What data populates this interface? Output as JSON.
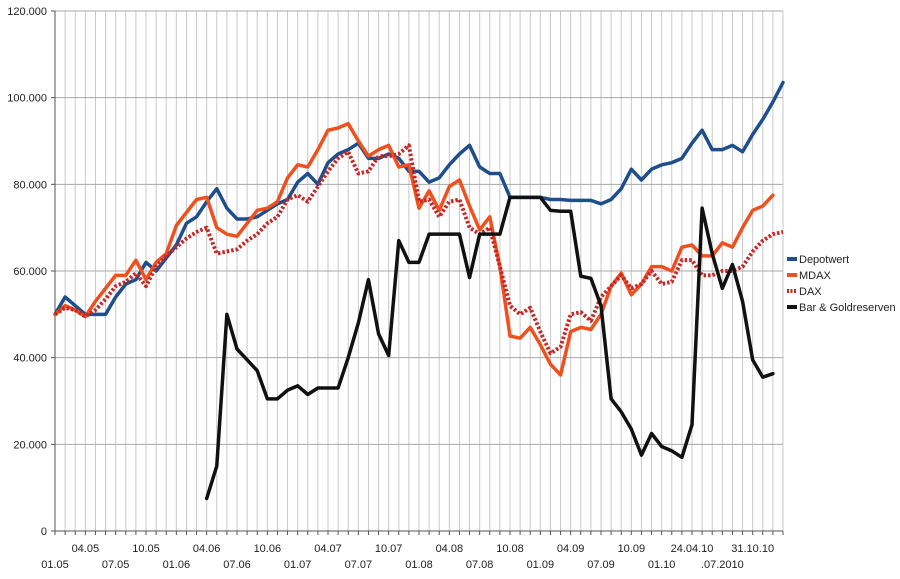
{
  "chart_data": {
    "type": "line",
    "title": "",
    "xlabel": "",
    "ylabel": "",
    "ylim": [
      0,
      120000
    ],
    "y_ticks": [
      {
        "value": 0,
        "label": "0"
      },
      {
        "value": 20000,
        "label": "20.000"
      },
      {
        "value": 40000,
        "label": "40.000"
      },
      {
        "value": 60000,
        "label": "60.000"
      },
      {
        "value": 80000,
        "label": "80.000"
      },
      {
        "value": 100000,
        "label": "100.000"
      },
      {
        "value": 120000,
        "label": "120.000"
      }
    ],
    "grid": true,
    "legend_position": "right",
    "x_tick_labels_upper": [
      {
        "index": 3,
        "label": "04.05"
      },
      {
        "index": 9,
        "label": "10.05"
      },
      {
        "index": 15,
        "label": "04.06"
      },
      {
        "index": 21,
        "label": "10.06"
      },
      {
        "index": 27,
        "label": "04.07"
      },
      {
        "index": 33,
        "label": "10.07"
      },
      {
        "index": 39,
        "label": "04.08"
      },
      {
        "index": 45,
        "label": "10.08"
      },
      {
        "index": 51,
        "label": "04.09"
      },
      {
        "index": 57,
        "label": "10.09"
      },
      {
        "index": 63,
        "label": "24.04.10"
      },
      {
        "index": 69,
        "label": "31.10.10"
      }
    ],
    "x_tick_labels_lower": [
      {
        "index": 0,
        "label": "01.05"
      },
      {
        "index": 6,
        "label": "07.05"
      },
      {
        "index": 12,
        "label": "01.06"
      },
      {
        "index": 18,
        "label": "07.06"
      },
      {
        "index": 24,
        "label": "01.07"
      },
      {
        "index": 30,
        "label": "07.07"
      },
      {
        "index": 36,
        "label": "01.08"
      },
      {
        "index": 42,
        "label": "07.08"
      },
      {
        "index": 48,
        "label": "01.09"
      },
      {
        "index": 54,
        "label": "07.09"
      },
      {
        "index": 60,
        "label": "01.10"
      },
      {
        "index": 66,
        "label": ".07.2010"
      }
    ],
    "series": [
      {
        "name": "Depotwert",
        "color": "#1f4e8c",
        "style": "solid",
        "values": [
          50000,
          54000,
          52000,
          50000,
          50000,
          50000,
          54000,
          57000,
          58000,
          62000,
          60000,
          63000,
          66000,
          71000,
          72500,
          76000,
          79000,
          74500,
          72000,
          72000,
          72500,
          74000,
          75500,
          76500,
          80500,
          82500,
          80000,
          85000,
          87000,
          88000,
          89500,
          86000,
          86000,
          87000,
          86000,
          83000,
          83000,
          80500,
          81500,
          84500,
          87000,
          89000,
          84000,
          82500,
          82500,
          77000,
          77000,
          77000,
          77000,
          76500,
          76500,
          76300,
          76300,
          76300,
          75500,
          76500,
          79000,
          83500,
          81000,
          83500,
          84500,
          85000,
          86000,
          89500,
          92500,
          88000,
          88000,
          89000,
          87500,
          91500,
          95000,
          99000,
          103500
        ]
      },
      {
        "name": "MDAX",
        "color": "#f0501e",
        "style": "solid",
        "values": [
          50000,
          52000,
          51000,
          49500,
          53000,
          56000,
          59000,
          59000,
          62500,
          58000,
          62000,
          64000,
          70500,
          73500,
          76500,
          77000,
          70000,
          68500,
          68000,
          71000,
          74000,
          74500,
          76000,
          81500,
          84500,
          84000,
          88000,
          92500,
          93000,
          94000,
          90000,
          86500,
          88000,
          89000,
          84000,
          84500,
          74500,
          78500,
          74000,
          79500,
          81000,
          75000,
          69500,
          72500,
          61000,
          45000,
          44500,
          47000,
          43000,
          38500,
          36000,
          46000,
          47000,
          46500,
          50000,
          56500,
          59500,
          54500,
          57000,
          61000,
          61000,
          60000,
          65500,
          66000,
          63500,
          63500,
          66500,
          65500,
          70000,
          74000,
          75000,
          77500
        ]
      },
      {
        "name": "DAX",
        "color": "#c62828",
        "style": "dotted",
        "values": [
          50000,
          51500,
          51000,
          49500,
          51000,
          53500,
          56500,
          57500,
          59500,
          56500,
          61000,
          63500,
          65500,
          67500,
          69000,
          70000,
          64000,
          64500,
          65000,
          67000,
          68500,
          71000,
          72500,
          76500,
          77500,
          76000,
          79500,
          83000,
          86000,
          87500,
          82500,
          83000,
          86500,
          86500,
          87000,
          89000,
          76000,
          76500,
          72500,
          76000,
          76500,
          70000,
          68500,
          70000,
          61000,
          52000,
          50000,
          51500,
          46000,
          41000,
          42500,
          50000,
          50500,
          48500,
          54000,
          56500,
          59000,
          56000,
          57000,
          60000,
          57000,
          57500,
          62500,
          62500,
          59000,
          59000,
          60000,
          60000,
          61000,
          64500,
          67000,
          68500,
          69000
        ]
      },
      {
        "name": "Bar & Goldreserven",
        "color": "#111111",
        "style": "solid",
        "start_index": 15,
        "values": [
          7500,
          15000,
          50000,
          42000,
          39500,
          37000,
          30500,
          30500,
          32500,
          33500,
          31500,
          33000,
          33000,
          33000,
          40000,
          48000,
          58000,
          45500,
          40500,
          67000,
          62000,
          62000,
          68500,
          68500,
          68500,
          68500,
          58500,
          68500,
          68500,
          68500,
          77000,
          77000,
          77000,
          77000,
          74000,
          73800,
          73800,
          58800,
          58300,
          52000,
          30500,
          27500,
          23500,
          17500,
          22500,
          19500,
          18500,
          17000,
          24500,
          74500,
          64000,
          56000,
          61500,
          53000,
          39500,
          35500,
          36300
        ]
      }
    ]
  }
}
